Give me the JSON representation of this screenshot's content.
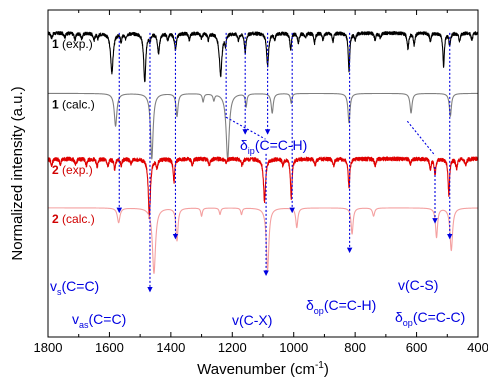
{
  "chart_data": {
    "type": "line",
    "xlabel": "Wavenumber (cm",
    "xlabel_sup": "-1",
    "xlabel_end": ")",
    "ylabel": "Normalized intensity (a.u.)",
    "xlim": [
      1800,
      400
    ],
    "x_reversed": true,
    "xticks": [
      1800,
      1600,
      1400,
      1200,
      1000,
      800,
      600,
      400
    ],
    "grid": false,
    "colors": {
      "exp1": "#000000",
      "calc1": "#808080",
      "exp2": "#e00000",
      "calc2": "#f4a0a0",
      "bold2": "#d00000",
      "annot": "#0000e0"
    },
    "series": [
      {
        "label_num": "1",
        "label_text": " (exp.)",
        "label_color": "#000000",
        "color": "#000000",
        "baseline": 0.93,
        "noise": 0.01,
        "peaks": [
          [
            1788,
            0.015,
            3
          ],
          [
            1745,
            0.012,
            3
          ],
          [
            1712,
            0.02,
            3
          ],
          [
            1690,
            0.018,
            3
          ],
          [
            1650,
            0.02,
            3
          ],
          [
            1638,
            0.015,
            3
          ],
          [
            1592,
            0.12,
            5
          ],
          [
            1562,
            0.025,
            3
          ],
          [
            1548,
            0.015,
            3
          ],
          [
            1485,
            0.15,
            4
          ],
          [
            1468,
            0.02,
            3
          ],
          [
            1440,
            0.06,
            4
          ],
          [
            1410,
            0.02,
            3
          ],
          [
            1385,
            0.05,
            4
          ],
          [
            1340,
            0.02,
            3
          ],
          [
            1300,
            0.015,
            3
          ],
          [
            1278,
            0.02,
            3
          ],
          [
            1238,
            0.13,
            5
          ],
          [
            1222,
            0.03,
            3
          ],
          [
            1180,
            0.02,
            3
          ],
          [
            1158,
            0.06,
            3
          ],
          [
            1085,
            0.1,
            4
          ],
          [
            1062,
            0.02,
            3
          ],
          [
            1010,
            0.05,
            3
          ],
          [
            985,
            0.03,
            3
          ],
          [
            962,
            0.015,
            3
          ],
          [
            932,
            0.03,
            3
          ],
          [
            905,
            0.02,
            3
          ],
          [
            872,
            0.025,
            3
          ],
          [
            820,
            0.115,
            3
          ],
          [
            800,
            0.02,
            3
          ],
          [
            735,
            0.02,
            3
          ],
          [
            718,
            0.015,
            3
          ],
          [
            628,
            0.05,
            3
          ],
          [
            608,
            0.035,
            3
          ],
          [
            555,
            0.025,
            3
          ],
          [
            512,
            0.1,
            3
          ],
          [
            492,
            0.04,
            3
          ],
          [
            460,
            0.025,
            3
          ],
          [
            420,
            0.02,
            3
          ]
        ]
      },
      {
        "label_num": "1",
        "label_text": " (calc.)",
        "label_color": "#000000",
        "color": "#808080",
        "baseline": 0.745,
        "noise": 0,
        "peaks": [
          [
            1580,
            0.1,
            5
          ],
          [
            1462,
            0.2,
            5
          ],
          [
            1380,
            0.07,
            4
          ],
          [
            1295,
            0.025,
            3
          ],
          [
            1260,
            0.02,
            3
          ],
          [
            1215,
            0.2,
            6
          ],
          [
            1155,
            0.04,
            3
          ],
          [
            1070,
            0.06,
            4
          ],
          [
            1008,
            0.03,
            3
          ],
          [
            820,
            0.09,
            4
          ],
          [
            618,
            0.06,
            4
          ],
          [
            490,
            0.07,
            4
          ]
        ]
      },
      {
        "label_num": "2",
        "label_text": " (exp.)",
        "label_color": "#d00000",
        "color": "#e00000",
        "baseline": 0.545,
        "noise": 0.012,
        "peaks": [
          [
            1788,
            0.02,
            3
          ],
          [
            1760,
            0.015,
            3
          ],
          [
            1710,
            0.02,
            3
          ],
          [
            1675,
            0.02,
            3
          ],
          [
            1640,
            0.025,
            3
          ],
          [
            1605,
            0.025,
            3
          ],
          [
            1583,
            0.03,
            3
          ],
          [
            1562,
            0.02,
            3
          ],
          [
            1530,
            0.015,
            3
          ],
          [
            1470,
            0.18,
            4
          ],
          [
            1445,
            0.025,
            3
          ],
          [
            1390,
            0.07,
            3
          ],
          [
            1330,
            0.02,
            3
          ],
          [
            1275,
            0.02,
            3
          ],
          [
            1220,
            0.015,
            3
          ],
          [
            1168,
            0.02,
            3
          ],
          [
            1095,
            0.13,
            4
          ],
          [
            1035,
            0.02,
            3
          ],
          [
            1008,
            0.12,
            3
          ],
          [
            930,
            0.02,
            3
          ],
          [
            870,
            0.02,
            3
          ],
          [
            820,
            0.09,
            3
          ],
          [
            735,
            0.02,
            3
          ],
          [
            620,
            0.015,
            3
          ],
          [
            555,
            0.03,
            3
          ],
          [
            540,
            0.05,
            3
          ],
          [
            495,
            0.11,
            3
          ],
          [
            470,
            0.03,
            3
          ],
          [
            440,
            0.02,
            3
          ]
        ]
      },
      {
        "label_num": "2",
        "label_text": " (calc.)",
        "label_color": "#d00000",
        "color": "#f4a0a0",
        "baseline": 0.395,
        "noise": 0,
        "peaks": [
          [
            1570,
            0.045,
            5
          ],
          [
            1455,
            0.2,
            6
          ],
          [
            1380,
            0.1,
            4
          ],
          [
            1300,
            0.025,
            3
          ],
          [
            1240,
            0.02,
            3
          ],
          [
            1170,
            0.02,
            3
          ],
          [
            1085,
            0.19,
            5
          ],
          [
            990,
            0.06,
            4
          ],
          [
            810,
            0.08,
            4
          ],
          [
            740,
            0.025,
            4
          ],
          [
            535,
            0.09,
            4
          ],
          [
            487,
            0.13,
            5
          ]
        ]
      }
    ],
    "annotations": [
      {
        "x": 1568,
        "main": "v",
        "sub": "s",
        "rest": "(C=C)"
      },
      {
        "x": 1460,
        "main": "v",
        "sub": "as",
        "rest": "(C=C)"
      },
      {
        "x": 1155,
        "main": "δ",
        "sub": "ip",
        "rest": "(C=C-H)"
      },
      {
        "x": 1090,
        "main": "v(C-X)",
        "sub": "",
        "rest": ""
      },
      {
        "x": 815,
        "main": "δ",
        "sub": "op",
        "rest": "(C=C-H)"
      },
      {
        "x": 535,
        "main": "v(C-S)",
        "sub": "",
        "rest": ""
      },
      {
        "x": 487,
        "main": "δ",
        "sub": "op",
        "rest": "(C=C-C)"
      }
    ],
    "vertical_guides": [
      [
        1568,
        0.93,
        0.382,
        "top"
      ],
      [
        1468,
        0.93,
        0.14,
        "label"
      ],
      [
        1385,
        0.93,
        0.302,
        "label"
      ],
      [
        1220,
        0.93,
        0.67,
        "segment"
      ],
      [
        1158,
        0.93,
        0.622,
        "label"
      ],
      [
        1085,
        0.93,
        0.622,
        "label"
      ],
      [
        1090,
        0.56,
        0.19,
        "label"
      ],
      [
        1005,
        0.93,
        0.382,
        "label"
      ],
      [
        818,
        0.93,
        0.26,
        "label"
      ],
      [
        540,
        0.52,
        0.35,
        "label"
      ],
      [
        492,
        0.93,
        0.302,
        "label"
      ]
    ],
    "diagonal_guides": [
      [
        1220,
        0.672,
        1092,
        0.605
      ],
      [
        630,
        0.66,
        540,
        0.555
      ]
    ]
  }
}
